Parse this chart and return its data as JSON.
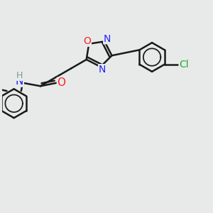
{
  "background_color": "#e8eaea",
  "bond_color": "#1a1a1a",
  "atom_colors": {
    "N": "#2222ff",
    "O": "#ff2222",
    "Cl": "#22aa22",
    "H": "#7a9a9a",
    "C": "#1a1a1a"
  },
  "bond_width": 1.8,
  "font_size": 10,
  "ring_font_size": 10
}
